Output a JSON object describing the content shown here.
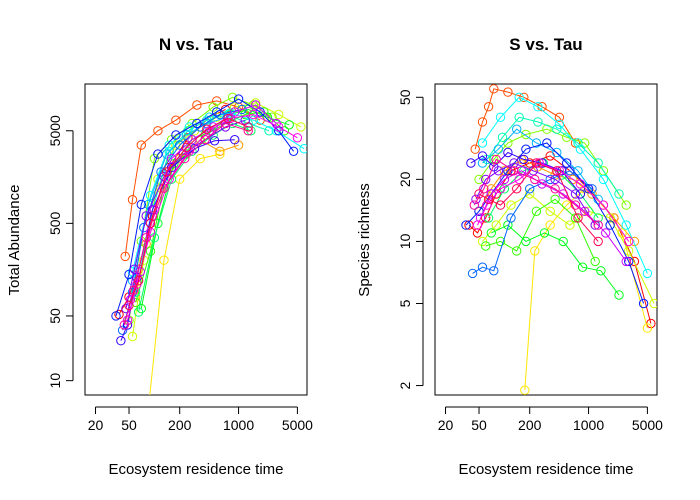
{
  "chart_data": [
    {
      "type": "line",
      "title": "N vs. Tau",
      "xlabel": "Ecosystem residence time",
      "ylabel": "Total Abundance",
      "x_scale": "log",
      "y_scale": "log",
      "xlim": [
        15,
        6500
      ],
      "ylim": [
        7,
        16000
      ],
      "x_ticks": [
        20,
        50,
        200,
        1000,
        5000
      ],
      "x_tick_labels": [
        "20",
        "50",
        "200",
        "1000",
        "5000"
      ],
      "y_ticks": [
        10,
        50,
        500,
        5000
      ],
      "y_tick_labels": [
        "10",
        "50",
        "500",
        "5000"
      ],
      "grid": false,
      "legend": "none",
      "series": [
        {
          "color": "#ff0000",
          "x": [
            38,
            50,
            65,
            95,
            150,
            250,
            450,
            700
          ],
          "y": [
            52,
            80,
            160,
            600,
            2000,
            4200,
            7000,
            8500
          ]
        },
        {
          "color": "#ff4d00",
          "x": [
            45,
            55,
            70,
            110,
            180,
            320,
            550,
            1000,
            1800
          ],
          "y": [
            220,
            900,
            3500,
            5000,
            6500,
            9500,
            10500,
            9000,
            6500
          ]
        },
        {
          "color": "#ff9900",
          "x": [
            60,
            80,
            120,
            200,
            350,
            600,
            1000
          ],
          "y": [
            80,
            300,
            1200,
            2500,
            4000,
            3000,
            3500
          ]
        },
        {
          "color": "#ffe600",
          "x": [
            85,
            130,
            200,
            350,
            600
          ],
          "y": [
            5,
            200,
            1500,
            2500,
            2800
          ]
        },
        {
          "color": "#ccff00",
          "x": [
            55,
            75,
            110,
            180,
            300,
            550,
            900,
            1600,
            3000,
            5500
          ],
          "y": [
            30,
            200,
            1500,
            3500,
            5000,
            7000,
            9000,
            10000,
            7500,
            5500
          ]
        },
        {
          "color": "#80ff00",
          "x": [
            50,
            70,
            100,
            160,
            280,
            500,
            850,
            1500,
            2500
          ],
          "y": [
            45,
            320,
            2500,
            4000,
            6000,
            9000,
            11500,
            9500,
            7000
          ]
        },
        {
          "color": "#33ff00",
          "x": [
            60,
            90,
            140,
            240,
            400,
            700,
            1200,
            2000,
            3500
          ],
          "y": [
            70,
            250,
            1800,
            2800,
            4500,
            6000,
            7500,
            8000,
            5000
          ]
        },
        {
          "color": "#00ff1a",
          "x": [
            70,
            110,
            170,
            280,
            480,
            800,
            1300,
            2200,
            4000
          ],
          "y": [
            60,
            500,
            2200,
            4000,
            5000,
            7500,
            8500,
            7000,
            5800
          ]
        },
        {
          "color": "#00ff66",
          "x": [
            65,
            100,
            160,
            280,
            500,
            850,
            1400
          ],
          "y": [
            55,
            350,
            1500,
            3000,
            4500,
            6000,
            5000
          ]
        },
        {
          "color": "#00ffb3",
          "x": [
            60,
            95,
            150,
            250,
            420,
            750,
            1300,
            2300
          ],
          "y": [
            90,
            700,
            3000,
            5000,
            6500,
            7500,
            6000,
            5000
          ]
        },
        {
          "color": "#00ffff",
          "x": [
            55,
            90,
            150,
            260,
            450,
            800,
            1500,
            2800,
            6000
          ],
          "y": [
            150,
            1000,
            3500,
            5500,
            7000,
            7800,
            6500,
            5000,
            3200
          ]
        },
        {
          "color": "#00b3ff",
          "x": [
            55,
            85,
            140,
            240,
            420,
            750
          ],
          "y": [
            120,
            800,
            2800,
            4500,
            6000,
            7000
          ]
        },
        {
          "color": "#0066ff",
          "x": [
            42,
            55,
            75,
            120,
            200,
            350,
            600,
            1100
          ],
          "y": [
            35,
            90,
            450,
            1800,
            3500,
            5500,
            7500,
            8500
          ]
        },
        {
          "color": "#001aff",
          "x": [
            35,
            50,
            70,
            110,
            180,
            320,
            550,
            1000,
            1800,
            3000,
            4500
          ],
          "y": [
            50,
            140,
            800,
            2800,
            4500,
            6000,
            8000,
            11000,
            8000,
            5000,
            3000
          ]
        },
        {
          "color": "#3300ff",
          "x": [
            40,
            48,
            62,
            95,
            160,
            300,
            520,
            900
          ],
          "y": [
            27,
            40,
            130,
            700,
            2000,
            3200,
            3900,
            4000
          ]
        },
        {
          "color": "#8000ff",
          "x": [
            46,
            58,
            80,
            130,
            220,
            400,
            700,
            1200
          ],
          "y": [
            60,
            160,
            600,
            1600,
            2800,
            4000,
            5500,
            6500
          ]
        },
        {
          "color": "#cc00ff",
          "x": [
            52,
            68,
            100,
            160,
            280,
            500,
            900,
            1600,
            2800
          ],
          "y": [
            75,
            150,
            700,
            2500,
            4000,
            5500,
            8000,
            9500,
            6000
          ]
        },
        {
          "color": "#ff00e6",
          "x": [
            48,
            62,
            90,
            150,
            260,
            450,
            800,
            1500,
            3000,
            5000
          ],
          "y": [
            45,
            110,
            400,
            1500,
            3000,
            5000,
            6800,
            7500,
            5500,
            4200
          ]
        },
        {
          "color": "#ff0099",
          "x": [
            44,
            57,
            80,
            130,
            230,
            400,
            700,
            1300
          ],
          "y": [
            40,
            95,
            350,
            1200,
            2500,
            4000,
            6000,
            5000
          ]
        },
        {
          "color": "#ff004d",
          "x": [
            50,
            65,
            90,
            140,
            240,
            420,
            750,
            1300
          ],
          "y": [
            65,
            120,
            500,
            1800,
            3300,
            5200,
            6800,
            5500
          ]
        }
      ]
    },
    {
      "type": "line",
      "title": "S vs. Tau",
      "xlabel": "Ecosystem residence time",
      "ylabel": "Species richness",
      "x_scale": "log",
      "y_scale": "log",
      "xlim": [
        15,
        6500
      ],
      "ylim": [
        1.8,
        58
      ],
      "x_ticks": [
        20,
        50,
        200,
        1000,
        5000
      ],
      "x_tick_labels": [
        "20",
        "50",
        "200",
        "1000",
        "5000"
      ],
      "y_ticks": [
        2,
        5,
        10,
        20,
        50
      ],
      "y_tick_labels": [
        "2",
        "5",
        "10",
        "20",
        "50"
      ],
      "grid": false,
      "legend": "none",
      "series": [
        {
          "color": "#ff0000",
          "x": [
            38,
            48,
            60,
            80,
            120,
            200,
            350,
            600,
            1000,
            2000,
            3500,
            5500
          ],
          "y": [
            12,
            11,
            13,
            17,
            22,
            24,
            26,
            22,
            18,
            13,
            8,
            4
          ]
        },
        {
          "color": "#ff4d00",
          "x": [
            45,
            55,
            65,
            75,
            110,
            170,
            280,
            450,
            700
          ],
          "y": [
            28,
            38,
            45,
            55,
            53,
            50,
            45,
            40,
            30
          ]
        },
        {
          "color": "#ff9900",
          "x": [
            50,
            70,
            100,
            160,
            250,
            400,
            650,
            1100,
            2000,
            3500
          ],
          "y": [
            14,
            18,
            22,
            25,
            23,
            21,
            20,
            17,
            13,
            10
          ]
        },
        {
          "color": "#ffe600",
          "x": [
            175,
            230,
            350,
            550,
            900,
            1500,
            2500,
            5000
          ],
          "y": [
            1.9,
            9,
            12,
            15,
            18,
            15,
            11,
            3.8
          ]
        },
        {
          "color": "#ccff00",
          "x": [
            55,
            80,
            120,
            200,
            350,
            600,
            1000,
            1800,
            3000,
            6000
          ],
          "y": [
            10,
            12,
            15,
            17,
            14,
            12,
            14,
            13,
            9,
            5
          ]
        },
        {
          "color": "#80ff00",
          "x": [
            50,
            75,
            110,
            180,
            320,
            550,
            900,
            1500,
            2800
          ],
          "y": [
            20,
            25,
            30,
            33,
            35,
            32,
            30,
            22,
            15
          ]
        },
        {
          "color": "#33ff00",
          "x": [
            60,
            90,
            140,
            240,
            400,
            700,
            1200
          ],
          "y": [
            9.5,
            10,
            9,
            14,
            16,
            13,
            8
          ]
        },
        {
          "color": "#00ff1a",
          "x": [
            70,
            110,
            180,
            300,
            500,
            850,
            1400,
            2300
          ],
          "y": [
            11,
            12,
            10,
            11,
            10,
            7.5,
            7.2,
            5.5
          ]
        },
        {
          "color": "#00ff66",
          "x": [
            65,
            100,
            170,
            290,
            480,
            800,
            1300
          ],
          "y": [
            13,
            18,
            22,
            24,
            21,
            17,
            13
          ]
        },
        {
          "color": "#00ffb3",
          "x": [
            62,
            95,
            150,
            250,
            420,
            750,
            1300,
            2300
          ],
          "y": [
            25,
            32,
            40,
            38,
            35,
            30,
            24,
            17
          ]
        },
        {
          "color": "#00ffff",
          "x": [
            55,
            90,
            150,
            250,
            450,
            800,
            1500,
            2800,
            5000
          ],
          "y": [
            30,
            40,
            50,
            45,
            37,
            28,
            20,
            12,
            7
          ]
        },
        {
          "color": "#00b3ff",
          "x": [
            55,
            85,
            140,
            240,
            420,
            750,
            1300
          ],
          "y": [
            24,
            28,
            35,
            30,
            27,
            22,
            16
          ]
        },
        {
          "color": "#0066ff",
          "x": [
            42,
            55,
            75,
            120,
            200,
            350,
            600,
            1100
          ],
          "y": [
            7,
            7.5,
            7.2,
            13,
            18,
            20,
            22,
            18
          ]
        },
        {
          "color": "#001aff",
          "x": [
            35,
            50,
            70,
            110,
            180,
            320,
            550,
            1000,
            1800,
            3000,
            4500
          ],
          "y": [
            12,
            14,
            17,
            22,
            28,
            30,
            24,
            18,
            12,
            8,
            5
          ]
        },
        {
          "color": "#3300ff",
          "x": [
            40,
            55,
            75,
            110,
            170,
            280,
            480,
            800
          ],
          "y": [
            24,
            26,
            23,
            27,
            25,
            24,
            22,
            17
          ]
        },
        {
          "color": "#8000ff",
          "x": [
            46,
            60,
            85,
            130,
            220,
            400,
            700,
            1200
          ],
          "y": [
            16,
            20,
            22,
            24,
            22,
            20,
            17,
            12
          ]
        },
        {
          "color": "#cc00ff",
          "x": [
            52,
            70,
            100,
            160,
            280,
            500,
            900,
            1600,
            2800
          ],
          "y": [
            13,
            17,
            20,
            22,
            19,
            17,
            14,
            11,
            8
          ]
        },
        {
          "color": "#ff00e6",
          "x": [
            48,
            62,
            90,
            150,
            260,
            450,
            800,
            1500,
            3000
          ],
          "y": [
            12,
            15,
            18,
            20,
            24,
            22,
            19,
            15,
            10
          ]
        },
        {
          "color": "#ff0099",
          "x": [
            44,
            57,
            80,
            130,
            230,
            400,
            700,
            1300
          ],
          "y": [
            15,
            18,
            25,
            22,
            20,
            18,
            15,
            12
          ]
        },
        {
          "color": "#ff004d",
          "x": [
            50,
            65,
            90,
            140,
            240,
            420,
            750,
            1300
          ],
          "y": [
            17,
            16,
            15,
            18,
            24,
            22,
            13,
            10
          ]
        }
      ]
    }
  ]
}
